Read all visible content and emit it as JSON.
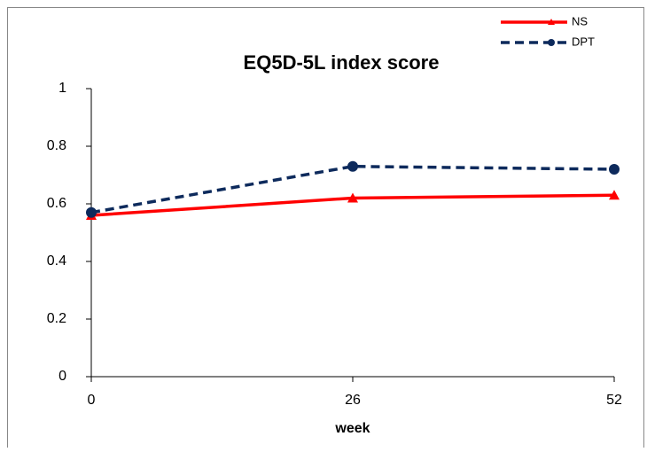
{
  "chart_data": {
    "type": "line",
    "title": "EQ5D-5L index score",
    "xlabel": "week",
    "x": [
      0,
      26,
      52
    ],
    "series": [
      {
        "name": "NS",
        "color": "#ff0000",
        "marker": "triangle",
        "dash": false,
        "values": [
          0.56,
          0.62,
          0.63
        ]
      },
      {
        "name": "DPT",
        "color": "#0d2a5c",
        "marker": "circle",
        "dash": true,
        "values": [
          0.57,
          0.73,
          0.72
        ]
      }
    ],
    "xlim": [
      0,
      52
    ],
    "xticks": [
      0,
      26,
      52
    ],
    "ylim": [
      0,
      1
    ],
    "yticks": [
      0,
      0.2,
      0.4,
      0.6,
      0.8,
      1
    ],
    "legend": "upper right"
  }
}
